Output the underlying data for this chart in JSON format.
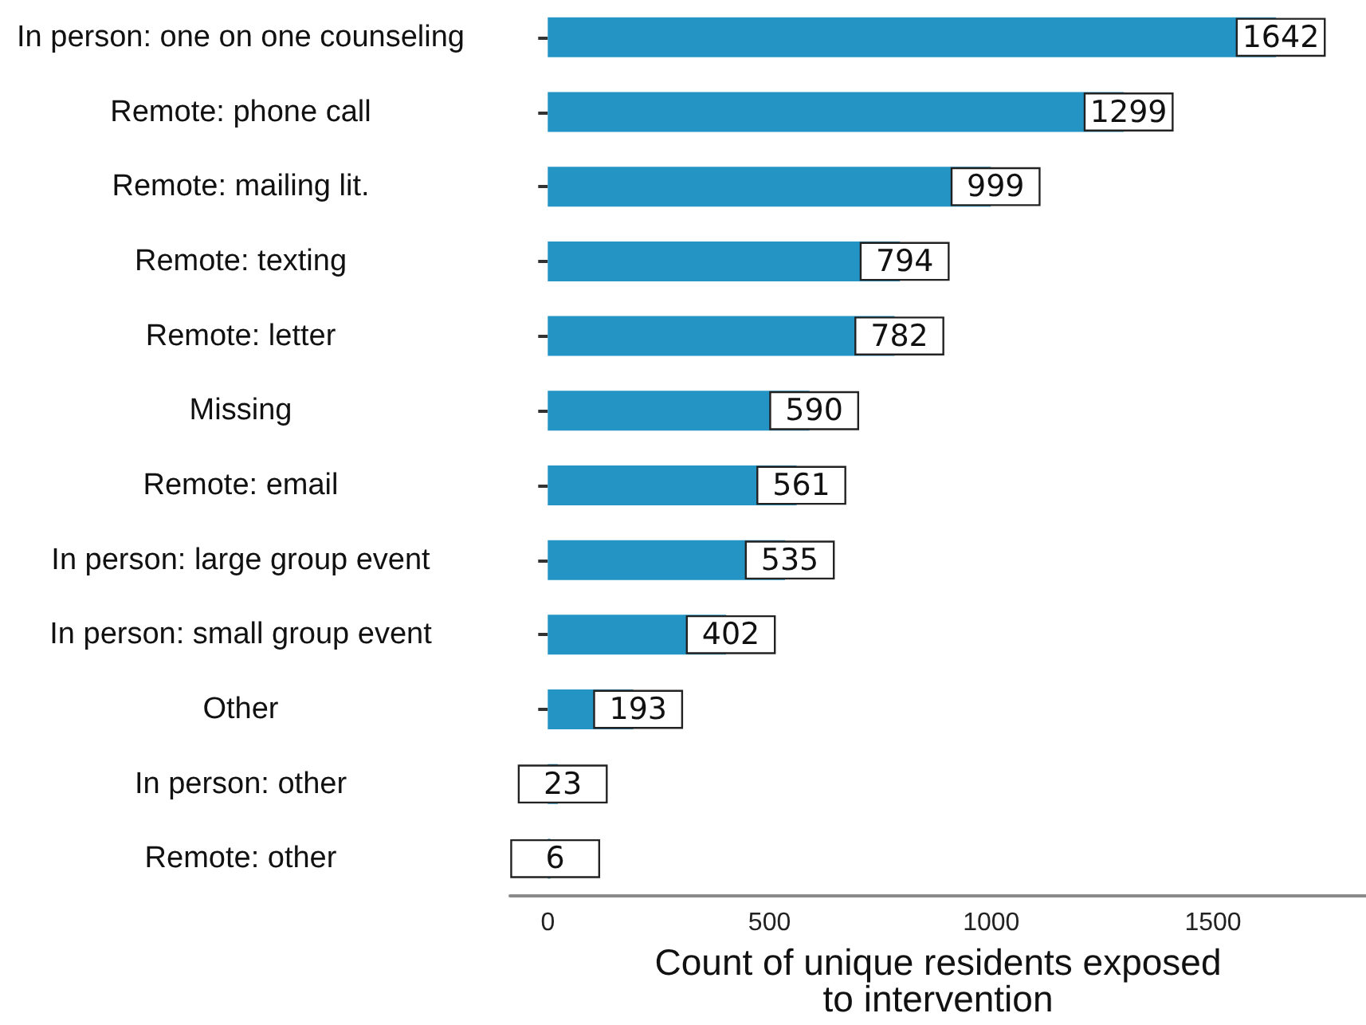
{
  "chart_data": {
    "type": "bar",
    "orientation": "horizontal",
    "categories": [
      "In person: one on one counseling",
      "Remote: phone call",
      "Remote: mailing lit.",
      "Remote: texting",
      "Remote: letter",
      "Missing",
      "Remote: email",
      "In person: large group event",
      "In person: small group event",
      "Other",
      "In person: other",
      "Remote: other"
    ],
    "values": [
      1642,
      1299,
      999,
      794,
      782,
      590,
      561,
      535,
      402,
      193,
      23,
      6
    ],
    "color": "#2494c5",
    "xlabel": "Count of unique residents exposed to intervention",
    "xlim": [
      -85,
      1845
    ],
    "xticks": [
      0,
      500,
      1000,
      1500
    ],
    "data_labels": true
  }
}
